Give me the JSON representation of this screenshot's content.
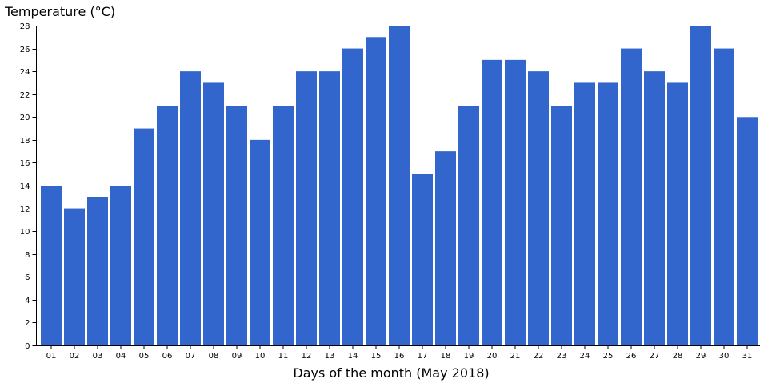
{
  "chart_data": {
    "type": "bar",
    "ylabel": "Temperature (°C)",
    "xlabel": "Days of the month (May 2018)",
    "categories": [
      "01",
      "02",
      "03",
      "04",
      "05",
      "06",
      "07",
      "08",
      "09",
      "10",
      "11",
      "12",
      "13",
      "14",
      "15",
      "16",
      "17",
      "18",
      "19",
      "20",
      "21",
      "22",
      "23",
      "24",
      "25",
      "26",
      "27",
      "28",
      "29",
      "30",
      "31"
    ],
    "values": [
      14,
      12,
      13,
      14,
      19,
      21,
      24,
      23,
      21,
      18,
      21,
      24,
      24,
      26,
      27,
      28,
      15,
      17,
      21,
      25,
      25,
      24,
      21,
      23,
      23,
      26,
      24,
      23,
      28,
      26,
      20
    ],
    "ylim": [
      0,
      28
    ],
    "yticks": [
      0,
      2,
      4,
      6,
      8,
      10,
      12,
      14,
      16,
      18,
      20,
      22,
      24,
      26,
      28
    ],
    "bar_color": "#3366cc",
    "grid": false,
    "legend": "none"
  }
}
